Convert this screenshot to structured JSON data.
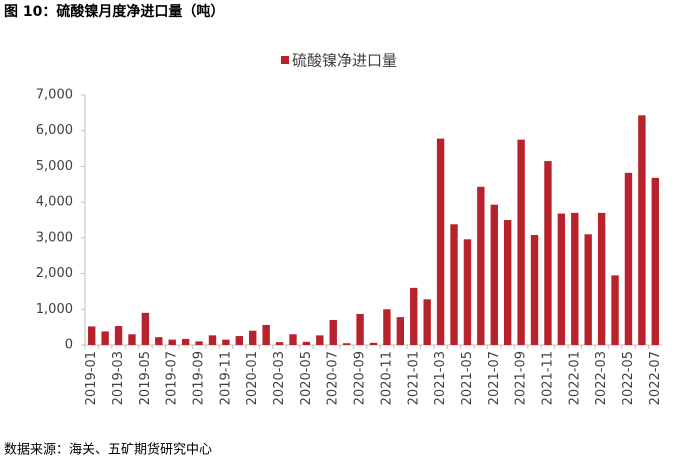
{
  "chart_data": {
    "type": "bar",
    "title": "图 10：硫酸镍月度净进口量（吨）",
    "source": "数据来源：海关、五矿期货研究中心",
    "categories": [
      "2019-01",
      null,
      "2019-03",
      null,
      "2019-05",
      null,
      "2019-07",
      null,
      "2019-09",
      null,
      "2019-11",
      null,
      "2020-01",
      null,
      "2020-03",
      null,
      "2020-05",
      null,
      "2020-07",
      null,
      "2020-09",
      null,
      "2020-11",
      null,
      "2021-01",
      null,
      "2021-03",
      null,
      "2021-05",
      null,
      "2021-07",
      null,
      "2021-09",
      null,
      "2021-11",
      null,
      "2022-01",
      null,
      "2022-03",
      null,
      "2022-05",
      null,
      "2022-07"
    ],
    "series": [
      {
        "name": "硫酸镍净进口量",
        "color": "#b7222b",
        "values": [
          520,
          380,
          530,
          300,
          900,
          220,
          150,
          170,
          100,
          270,
          150,
          250,
          400,
          560,
          80,
          300,
          90,
          270,
          700,
          50,
          870,
          60,
          1000,
          780,
          1600,
          1280,
          5780,
          3380,
          2960,
          4430,
          3930,
          3500,
          5750,
          3080,
          5150,
          3680,
          3700,
          3100,
          3700,
          1950,
          4820,
          6430,
          4680
        ]
      }
    ],
    "ylim": [
      0,
      7000
    ],
    "yticks": [
      0,
      {
        "value": 1000,
        "label": "1,000"
      },
      {
        "value": 2000,
        "label": "2,000"
      },
      {
        "value": 3000,
        "label": "3,000"
      },
      {
        "value": 4000,
        "label": "4,000"
      },
      {
        "value": 5000,
        "label": "5,000"
      },
      {
        "value": 6000,
        "label": "6,000"
      },
      {
        "value": 7000,
        "label": "7,000"
      }
    ],
    "grid": false
  }
}
